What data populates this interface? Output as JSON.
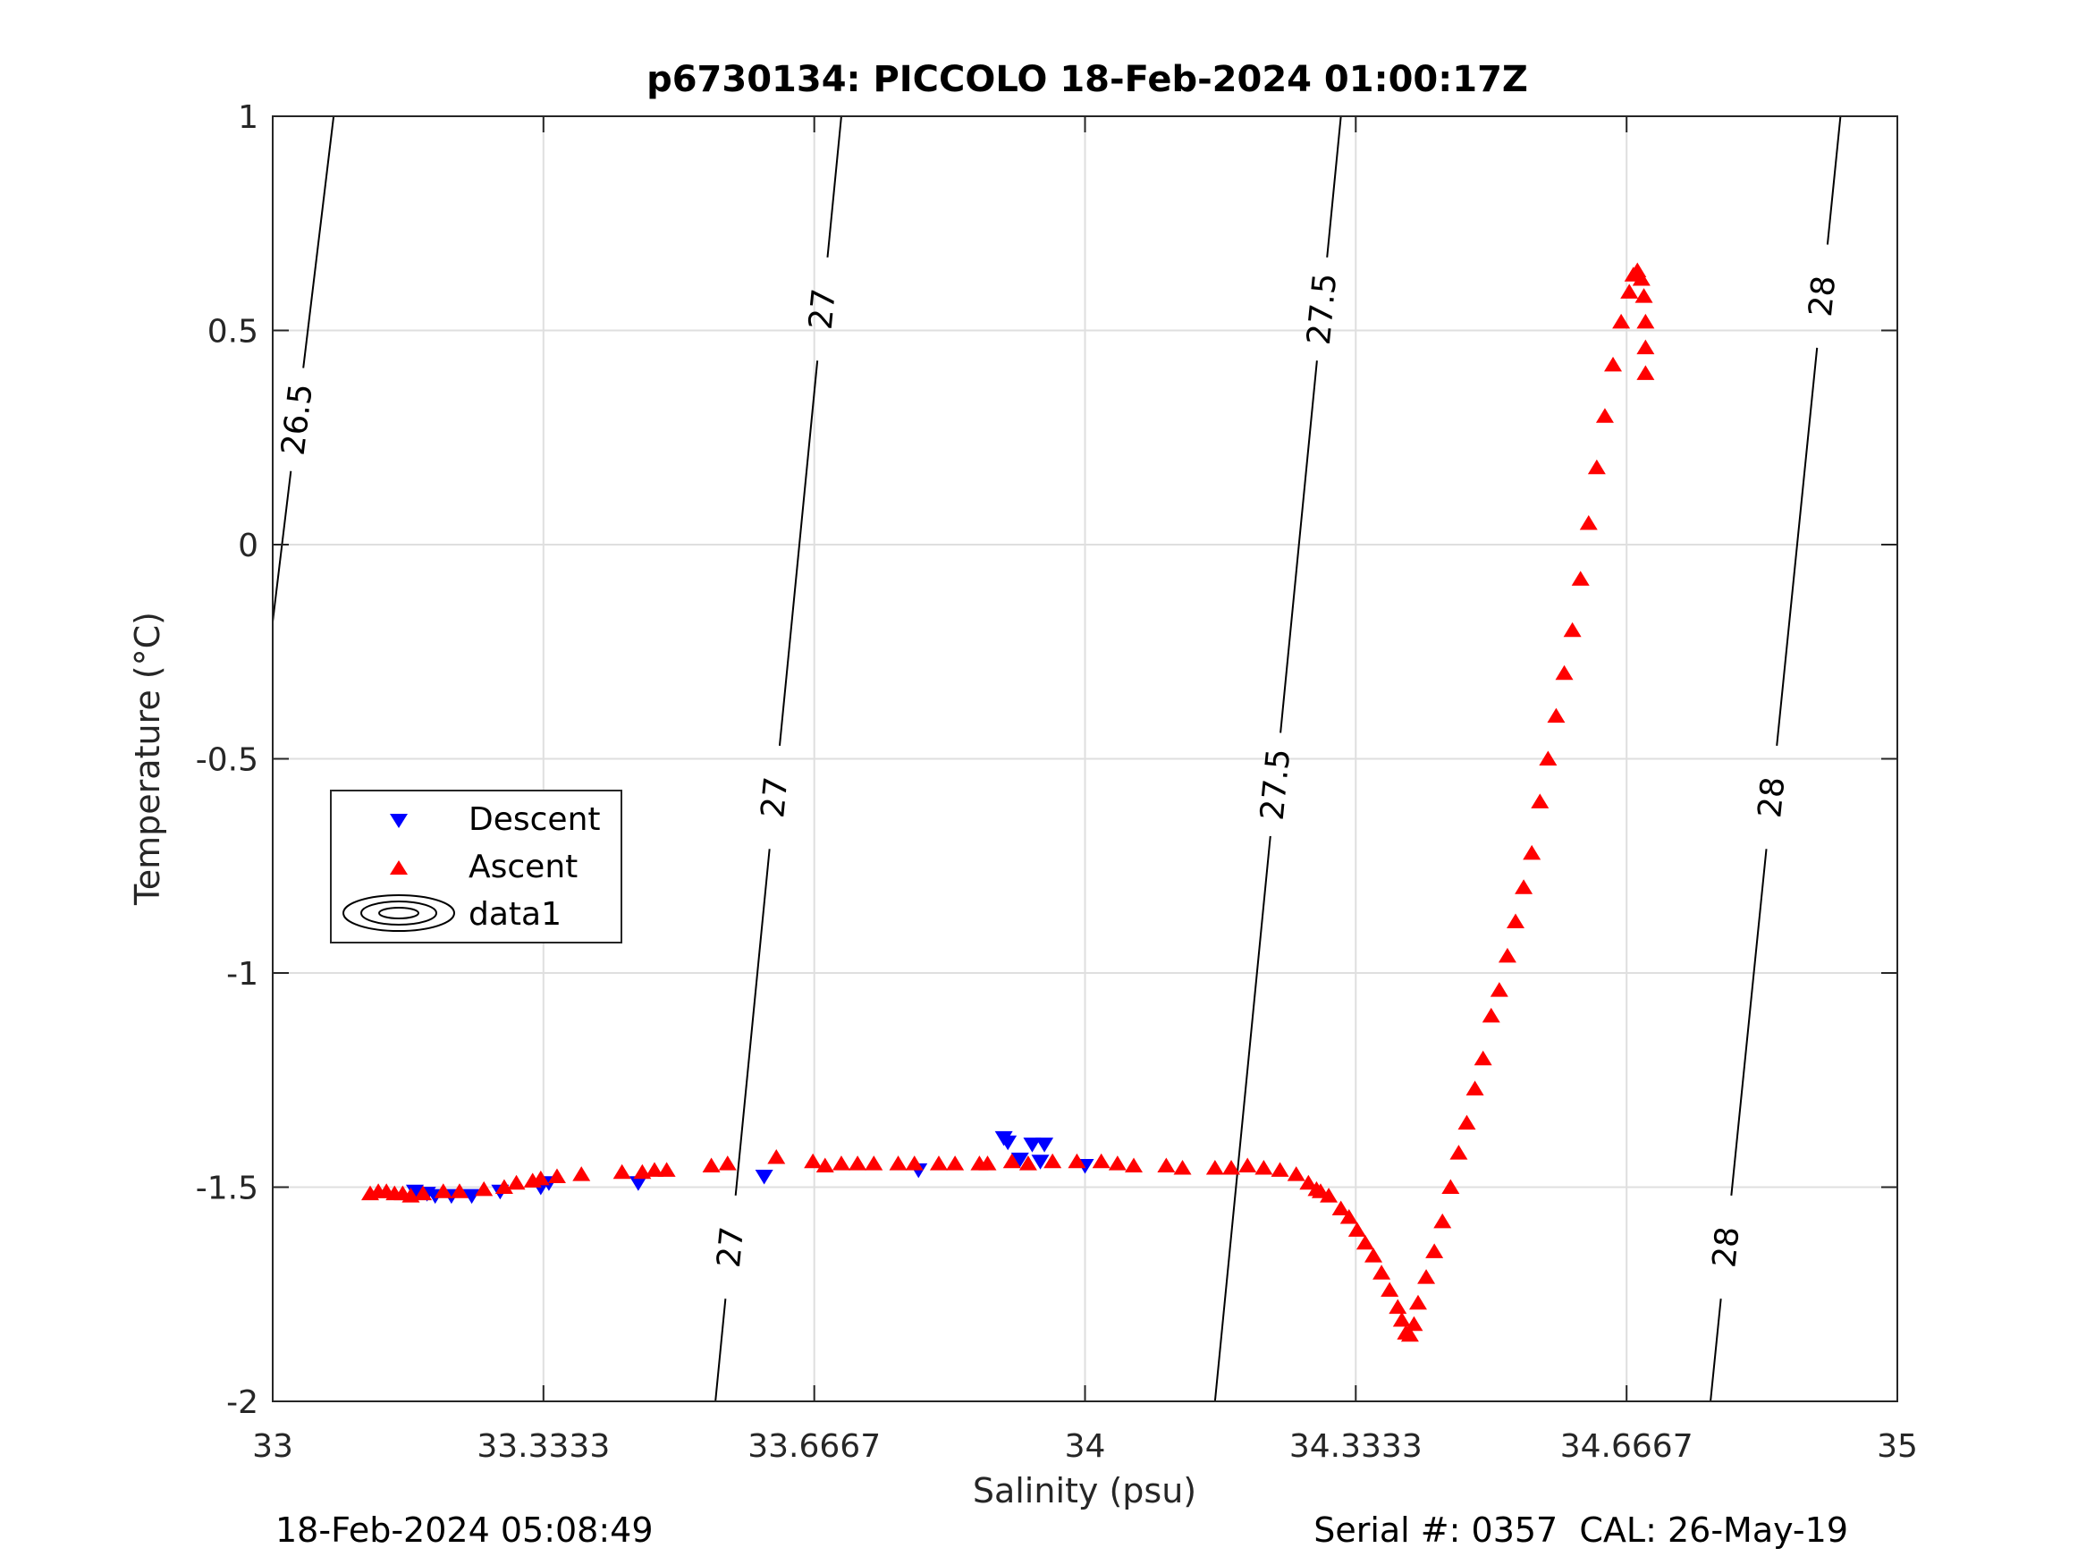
{
  "chart_data": {
    "type": "scatter",
    "title": "p6730134: PICCOLO 18-Feb-2024 01:00:17Z",
    "xlabel": "Salinity (psu)",
    "ylabel": "Temperature (°C)",
    "xlim": [
      33,
      35
    ],
    "ylim": [
      -2,
      1
    ],
    "xticks": [
      33,
      33.3333,
      33.6667,
      34,
      34.3333,
      34.6667,
      35
    ],
    "xtick_labels": [
      "33",
      "33.3333",
      "33.6667",
      "34",
      "34.3333",
      "34.6667",
      "35"
    ],
    "yticks": [
      -2,
      -1.5,
      -1,
      -0.5,
      0,
      0.5,
      1
    ],
    "ytick_labels": [
      "-2",
      "-1.5",
      "-1",
      "-0.5",
      "0",
      "0.5",
      "1"
    ],
    "grid": true,
    "legend_position": "middle-left",
    "series": [
      {
        "name": "Descent",
        "marker": "triangle-down",
        "color": "#0000ff",
        "points": [
          [
            33.175,
            -1.51
          ],
          [
            33.19,
            -1.515
          ],
          [
            33.2,
            -1.52
          ],
          [
            33.22,
            -1.52
          ],
          [
            33.245,
            -1.52
          ],
          [
            33.28,
            -1.51
          ],
          [
            33.33,
            -1.5
          ],
          [
            33.34,
            -1.49
          ],
          [
            33.45,
            -1.49
          ],
          [
            33.605,
            -1.475
          ],
          [
            33.795,
            -1.46
          ],
          [
            33.9,
            -1.385
          ],
          [
            33.905,
            -1.395
          ],
          [
            33.92,
            -1.435
          ],
          [
            33.935,
            -1.4
          ],
          [
            33.945,
            -1.44
          ],
          [
            33.95,
            -1.4
          ],
          [
            34.0,
            -1.45
          ]
        ]
      },
      {
        "name": "Ascent",
        "marker": "triangle-up",
        "color": "#ff0000",
        "points": [
          [
            33.12,
            -1.515
          ],
          [
            33.13,
            -1.51
          ],
          [
            33.14,
            -1.51
          ],
          [
            33.15,
            -1.515
          ],
          [
            33.16,
            -1.515
          ],
          [
            33.17,
            -1.52
          ],
          [
            33.185,
            -1.515
          ],
          [
            33.21,
            -1.51
          ],
          [
            33.23,
            -1.51
          ],
          [
            33.26,
            -1.505
          ],
          [
            33.285,
            -1.5
          ],
          [
            33.3,
            -1.49
          ],
          [
            33.32,
            -1.485
          ],
          [
            33.33,
            -1.48
          ],
          [
            33.35,
            -1.475
          ],
          [
            33.38,
            -1.47
          ],
          [
            33.43,
            -1.465
          ],
          [
            33.455,
            -1.465
          ],
          [
            33.47,
            -1.46
          ],
          [
            33.485,
            -1.46
          ],
          [
            33.54,
            -1.45
          ],
          [
            33.56,
            -1.445
          ],
          [
            33.62,
            -1.43
          ],
          [
            33.665,
            -1.44
          ],
          [
            33.68,
            -1.45
          ],
          [
            33.7,
            -1.445
          ],
          [
            33.72,
            -1.445
          ],
          [
            33.74,
            -1.445
          ],
          [
            33.77,
            -1.445
          ],
          [
            33.79,
            -1.445
          ],
          [
            33.82,
            -1.445
          ],
          [
            33.84,
            -1.445
          ],
          [
            33.87,
            -1.445
          ],
          [
            33.88,
            -1.445
          ],
          [
            33.91,
            -1.44
          ],
          [
            33.93,
            -1.445
          ],
          [
            33.96,
            -1.44
          ],
          [
            33.99,
            -1.44
          ],
          [
            34.02,
            -1.44
          ],
          [
            34.04,
            -1.445
          ],
          [
            34.06,
            -1.45
          ],
          [
            34.1,
            -1.45
          ],
          [
            34.12,
            -1.455
          ],
          [
            34.16,
            -1.455
          ],
          [
            34.18,
            -1.455
          ],
          [
            34.2,
            -1.45
          ],
          [
            34.22,
            -1.455
          ],
          [
            34.24,
            -1.46
          ],
          [
            34.26,
            -1.47
          ],
          [
            34.275,
            -1.49
          ],
          [
            34.285,
            -1.505
          ],
          [
            34.29,
            -1.51
          ],
          [
            34.3,
            -1.52
          ],
          [
            34.315,
            -1.55
          ],
          [
            34.325,
            -1.57
          ],
          [
            34.335,
            -1.6
          ],
          [
            34.345,
            -1.63
          ],
          [
            34.355,
            -1.66
          ],
          [
            34.365,
            -1.7
          ],
          [
            34.375,
            -1.74
          ],
          [
            34.385,
            -1.78
          ],
          [
            34.39,
            -1.81
          ],
          [
            34.395,
            -1.84
          ],
          [
            34.4,
            -1.845
          ],
          [
            34.405,
            -1.82
          ],
          [
            34.41,
            -1.77
          ],
          [
            34.42,
            -1.71
          ],
          [
            34.43,
            -1.65
          ],
          [
            34.44,
            -1.58
          ],
          [
            34.45,
            -1.5
          ],
          [
            34.46,
            -1.42
          ],
          [
            34.47,
            -1.35
          ],
          [
            34.48,
            -1.27
          ],
          [
            34.49,
            -1.2
          ],
          [
            34.5,
            -1.1
          ],
          [
            34.51,
            -1.04
          ],
          [
            34.52,
            -0.96
          ],
          [
            34.53,
            -0.88
          ],
          [
            34.54,
            -0.8
          ],
          [
            34.55,
            -0.72
          ],
          [
            34.56,
            -0.6
          ],
          [
            34.57,
            -0.5
          ],
          [
            34.58,
            -0.4
          ],
          [
            34.59,
            -0.3
          ],
          [
            34.6,
            -0.2
          ],
          [
            34.61,
            -0.08
          ],
          [
            34.62,
            0.05
          ],
          [
            34.63,
            0.18
          ],
          [
            34.64,
            0.3
          ],
          [
            34.65,
            0.42
          ],
          [
            34.66,
            0.52
          ],
          [
            34.67,
            0.59
          ],
          [
            34.675,
            0.63
          ],
          [
            34.68,
            0.64
          ],
          [
            34.685,
            0.62
          ],
          [
            34.688,
            0.58
          ],
          [
            34.69,
            0.52
          ],
          [
            34.69,
            0.46
          ],
          [
            34.69,
            0.4
          ]
        ]
      }
    ],
    "contours": [
      {
        "level": "26.5",
        "points": [
          [
            33.0,
            -0.18
          ],
          [
            33.075,
            1.0
          ]
        ],
        "labels": [
          0.4
        ]
      },
      {
        "level": "27",
        "points": [
          [
            33.545,
            -2.0
          ],
          [
            33.7,
            1.0
          ]
        ],
        "labels": [
          0.12,
          0.47,
          0.85
        ]
      },
      {
        "level": "27.5",
        "points": [
          [
            34.16,
            -2.0
          ],
          [
            34.315,
            1.0
          ]
        ],
        "labels": [
          0.48,
          0.85
        ]
      },
      {
        "level": "28",
        "points": [
          [
            34.77,
            -2.0
          ],
          [
            34.93,
            1.0
          ]
        ],
        "labels": [
          0.12,
          0.47,
          0.86
        ]
      }
    ],
    "legend": [
      "Descent",
      "Ascent",
      "data1"
    ]
  },
  "footer": {
    "left": "18-Feb-2024 05:08:49",
    "right": "Serial #: 0357  CAL: 26-May-19"
  }
}
